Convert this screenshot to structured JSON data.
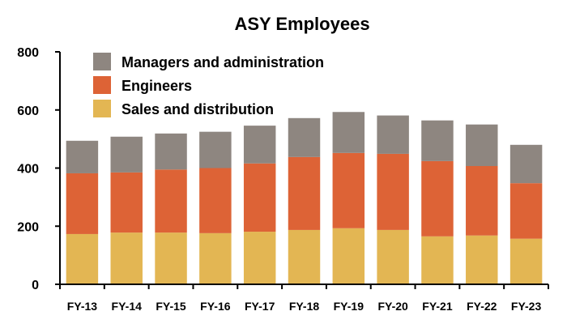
{
  "colors": {
    "managers": "#8e8680",
    "engineers": "#dd6336",
    "sales": "#e3b653",
    "axis": "#000000"
  },
  "chart_data": {
    "type": "bar",
    "stacked": true,
    "title": "ASY Employees",
    "xlabel": "",
    "ylabel": "",
    "ylim": [
      0,
      800
    ],
    "yticks": [
      "0",
      "200",
      "400",
      "600",
      "800"
    ],
    "grid": false,
    "legend_position": "top-left",
    "categories": [
      "FY-13",
      "FY-14",
      "FY-15",
      "FY-16",
      "FY-17",
      "FY-18",
      "FY-19",
      "FY-20",
      "FY-21",
      "FY-22",
      "FY-23"
    ],
    "series": [
      {
        "name": "Sales and distribution",
        "color_key": "sales",
        "values": [
          173,
          178,
          178,
          176,
          181,
          187,
          193,
          187,
          165,
          168,
          157
        ]
      },
      {
        "name": "Engineers",
        "color_key": "engineers",
        "values": [
          209,
          207,
          217,
          224,
          235,
          251,
          259,
          262,
          259,
          239,
          191
        ]
      },
      {
        "name": "Managers and administration",
        "color_key": "managers",
        "values": [
          112,
          123,
          124,
          125,
          130,
          134,
          141,
          132,
          140,
          143,
          132
        ]
      }
    ],
    "legend_order": [
      "Managers and administration",
      "Engineers",
      "Sales and distribution"
    ]
  }
}
